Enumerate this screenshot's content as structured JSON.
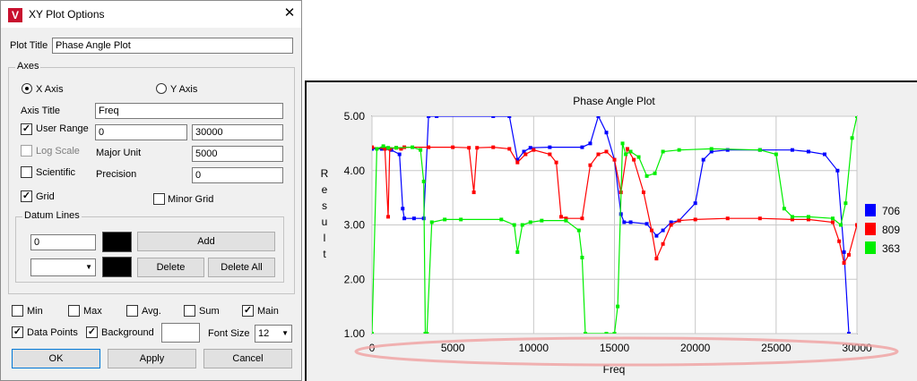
{
  "dialog": {
    "title": "XY Plot Options",
    "icon": "app-logo-icon",
    "close_glyph": "✕",
    "plot_title_label": "Plot Title",
    "plot_title_value": "Phase Angle Plot",
    "axes": {
      "group_label": "Axes",
      "x_axis_label": "X Axis",
      "y_axis_label": "Y Axis",
      "selected": "X Axis",
      "axis_title_label": "Axis Title",
      "axis_title_value": "Freq",
      "user_range_label": "User Range",
      "user_range_checked": true,
      "range_min": "0",
      "range_max": "30000",
      "log_scale_label": "Log Scale",
      "log_scale_checked": false,
      "major_unit_label": "Major Unit",
      "major_unit_value": "5000",
      "scientific_label": "Scientific",
      "scientific_checked": false,
      "precision_label": "Precision",
      "precision_value": "0",
      "grid_label": "Grid",
      "grid_checked": true,
      "minor_grid_label": "Minor Grid",
      "minor_grid_checked": false,
      "datum": {
        "group_label": "Datum Lines",
        "value": "0",
        "add_label": "Add",
        "delete_label": "Delete",
        "delete_all_label": "Delete All",
        "select_value": ""
      }
    },
    "options": {
      "min_label": "Min",
      "min_checked": false,
      "max_label": "Max",
      "max_checked": false,
      "avg_label": "Avg.",
      "avg_checked": false,
      "sum_label": "Sum",
      "sum_checked": false,
      "main_label": "Main",
      "main_checked": true,
      "data_points_label": "Data Points",
      "data_points_checked": true,
      "background_label": "Background",
      "background_checked": true,
      "font_size_label": "Font Size",
      "font_size_value": "12"
    },
    "buttons": {
      "ok": "OK",
      "apply": "Apply",
      "cancel": "Cancel"
    },
    "check_glyph": "✓"
  },
  "chart_data": {
    "type": "line",
    "title": "Phase Angle Plot",
    "xlabel": "Freq",
    "ylabel": "Result",
    "xlim": [
      0,
      30000
    ],
    "ylim": [
      1.0,
      5.0
    ],
    "x_ticks": [
      0,
      5000,
      10000,
      15000,
      20000,
      25000,
      30000
    ],
    "y_ticks": [
      "1.00",
      "2.00",
      "3.00",
      "4.00",
      "5.00"
    ],
    "grid": true,
    "legend_position": "right",
    "markers": true,
    "series": [
      {
        "name": "706",
        "color": "#0000ff",
        "points": [
          [
            0,
            4.4
          ],
          [
            600,
            4.4
          ],
          [
            1200,
            4.38
          ],
          [
            1700,
            4.3
          ],
          [
            1900,
            3.3
          ],
          [
            2000,
            3.12
          ],
          [
            2600,
            3.12
          ],
          [
            3200,
            3.12
          ],
          [
            3500,
            5.0
          ],
          [
            4000,
            5.0
          ],
          [
            7500,
            5.0
          ],
          [
            8500,
            5.0
          ],
          [
            9000,
            4.2
          ],
          [
            9400,
            4.35
          ],
          [
            9800,
            4.42
          ],
          [
            11000,
            4.43
          ],
          [
            13000,
            4.43
          ],
          [
            13500,
            4.5
          ],
          [
            14000,
            5.0
          ],
          [
            14500,
            4.7
          ],
          [
            15000,
            4.2
          ],
          [
            15400,
            3.2
          ],
          [
            15600,
            3.05
          ],
          [
            16000,
            3.05
          ],
          [
            17000,
            3.02
          ],
          [
            17600,
            2.8
          ],
          [
            18000,
            2.9
          ],
          [
            18500,
            3.05
          ],
          [
            19000,
            3.08
          ],
          [
            20000,
            3.4
          ],
          [
            20500,
            4.2
          ],
          [
            21000,
            4.35
          ],
          [
            22000,
            4.38
          ],
          [
            24000,
            4.38
          ],
          [
            26000,
            4.38
          ],
          [
            27000,
            4.35
          ],
          [
            28000,
            4.3
          ],
          [
            28800,
            4.0
          ],
          [
            29200,
            2.5
          ],
          [
            29500,
            1.0
          ]
        ]
      },
      {
        "name": "809",
        "color": "#ff0000",
        "points": [
          [
            0,
            4.43
          ],
          [
            800,
            4.4
          ],
          [
            1000,
            3.15
          ],
          [
            1100,
            4.4
          ],
          [
            1500,
            4.42
          ],
          [
            1800,
            4.4
          ],
          [
            2000,
            4.43
          ],
          [
            3500,
            4.43
          ],
          [
            5000,
            4.43
          ],
          [
            6000,
            4.42
          ],
          [
            6300,
            3.6
          ],
          [
            6500,
            4.42
          ],
          [
            7500,
            4.43
          ],
          [
            8500,
            4.4
          ],
          [
            9000,
            4.15
          ],
          [
            9500,
            4.3
          ],
          [
            10000,
            4.38
          ],
          [
            11000,
            4.3
          ],
          [
            11400,
            4.15
          ],
          [
            11700,
            3.15
          ],
          [
            12000,
            3.12
          ],
          [
            13000,
            3.12
          ],
          [
            13500,
            4.1
          ],
          [
            14000,
            4.3
          ],
          [
            14500,
            4.35
          ],
          [
            15000,
            4.2
          ],
          [
            15400,
            3.6
          ],
          [
            15800,
            4.4
          ],
          [
            16200,
            4.2
          ],
          [
            16800,
            3.6
          ],
          [
            17300,
            2.9
          ],
          [
            17600,
            2.38
          ],
          [
            18000,
            2.65
          ],
          [
            18500,
            3.0
          ],
          [
            19000,
            3.08
          ],
          [
            20000,
            3.1
          ],
          [
            22000,
            3.12
          ],
          [
            24000,
            3.12
          ],
          [
            26000,
            3.1
          ],
          [
            27000,
            3.1
          ],
          [
            28500,
            3.05
          ],
          [
            28900,
            2.7
          ],
          [
            29200,
            2.3
          ],
          [
            29500,
            2.45
          ],
          [
            30000,
            3.0
          ]
        ]
      },
      {
        "name": "363",
        "color": "#00ee00",
        "points": [
          [
            0,
            1.0
          ],
          [
            300,
            4.4
          ],
          [
            700,
            4.45
          ],
          [
            1000,
            4.42
          ],
          [
            1500,
            4.42
          ],
          [
            2500,
            4.43
          ],
          [
            3000,
            4.38
          ],
          [
            3200,
            3.8
          ],
          [
            3300,
            1.0
          ],
          [
            3400,
            1.0
          ],
          [
            3700,
            3.05
          ],
          [
            4500,
            3.1
          ],
          [
            5500,
            3.1
          ],
          [
            8000,
            3.1
          ],
          [
            8800,
            3.0
          ],
          [
            9000,
            2.5
          ],
          [
            9300,
            3.0
          ],
          [
            9800,
            3.05
          ],
          [
            10500,
            3.08
          ],
          [
            12000,
            3.08
          ],
          [
            12800,
            2.9
          ],
          [
            13000,
            2.4
          ],
          [
            13200,
            1.0
          ],
          [
            14500,
            1.0
          ],
          [
            15000,
            1.0
          ],
          [
            15200,
            1.5
          ],
          [
            15500,
            4.5
          ],
          [
            15700,
            4.3
          ],
          [
            16000,
            4.35
          ],
          [
            16500,
            4.25
          ],
          [
            17000,
            3.9
          ],
          [
            17500,
            3.95
          ],
          [
            18000,
            4.35
          ],
          [
            19000,
            4.38
          ],
          [
            21000,
            4.4
          ],
          [
            24000,
            4.38
          ],
          [
            25000,
            4.3
          ],
          [
            25500,
            3.3
          ],
          [
            26000,
            3.15
          ],
          [
            27000,
            3.15
          ],
          [
            28500,
            3.12
          ],
          [
            29000,
            3.0
          ],
          [
            29300,
            3.4
          ],
          [
            29700,
            4.6
          ],
          [
            30000,
            5.0
          ]
        ]
      }
    ]
  }
}
